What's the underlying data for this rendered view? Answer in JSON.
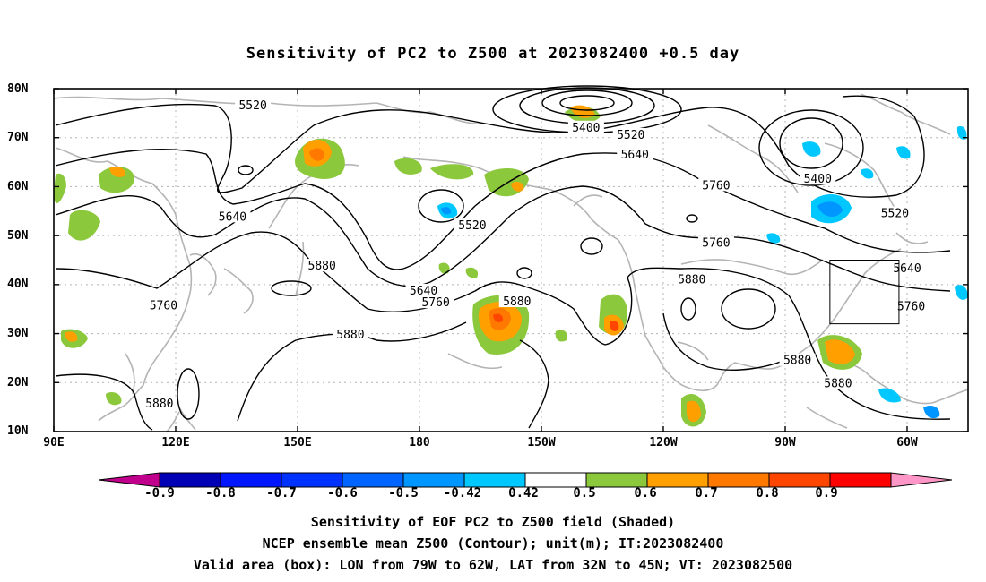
{
  "title": "Sensitivity of PC2 to Z500 at 2023082400 +0.5 day",
  "lat_ticks": [
    "80N",
    "70N",
    "60N",
    "50N",
    "40N",
    "30N",
    "20N",
    "10N"
  ],
  "lon_ticks": [
    "90E",
    "120E",
    "150E",
    "180",
    "150W",
    "120W",
    "90W",
    "60W"
  ],
  "contour_labels": [
    {
      "text": "5520",
      "lon": 139,
      "lat": 76.5
    },
    {
      "text": "5400",
      "lon": -139,
      "lat": 72.0
    },
    {
      "text": "5520",
      "lon": -128,
      "lat": 70.5
    },
    {
      "text": "5640",
      "lon": -127,
      "lat": 66.5
    },
    {
      "text": "5760",
      "lon": -107,
      "lat": 60.2
    },
    {
      "text": "5400",
      "lon": -82,
      "lat": 61.5
    },
    {
      "text": "5520",
      "lon": -63,
      "lat": 54.5
    },
    {
      "text": "5640",
      "lon": 134,
      "lat": 53.8
    },
    {
      "text": "5520",
      "lon": -167,
      "lat": 52.0
    },
    {
      "text": "5760",
      "lon": -107,
      "lat": 48.5
    },
    {
      "text": "5880",
      "lon": 156,
      "lat": 43.8
    },
    {
      "text": "5640",
      "lon": -179,
      "lat": 38.7
    },
    {
      "text": "5760",
      "lon": -176,
      "lat": 36.3
    },
    {
      "text": "5880",
      "lon": -156,
      "lat": 36.5
    },
    {
      "text": "5760",
      "lon": 117,
      "lat": 35.7
    },
    {
      "text": "5880",
      "lon": -113,
      "lat": 41.0
    },
    {
      "text": "5640",
      "lon": -60,
      "lat": 43.3
    },
    {
      "text": "5760",
      "lon": -59,
      "lat": 35.5
    },
    {
      "text": "5880",
      "lon": 163,
      "lat": 29.7
    },
    {
      "text": "5880",
      "lon": -87,
      "lat": 24.5
    },
    {
      "text": "5880",
      "lon": -77,
      "lat": 19.8
    },
    {
      "text": "5880",
      "lon": 116,
      "lat": 15.7
    }
  ],
  "valid_box": {
    "lon_west": -79,
    "lon_east": -62,
    "lat_south": 32,
    "lat_north": 45
  },
  "colorbar": {
    "labels": [
      "-0.9",
      "-0.8",
      "-0.7",
      "-0.6",
      "-0.5",
      "-0.42",
      "0.42",
      "0.5",
      "0.6",
      "0.7",
      "0.8",
      "0.9"
    ],
    "colors": [
      "#c0008c",
      "#0000b4",
      "#0016ff",
      "#0032ff",
      "#0064ff",
      "#0096ff",
      "#00c8ff",
      "#ffffff",
      "#8cc83c",
      "#ffa000",
      "#ff7800",
      "#ff4600",
      "#ff0000",
      "#ff96c8"
    ]
  },
  "captions": [
    "Sensitivity of EOF PC2 to Z500 field (Shaded)",
    "NCEP ensemble mean Z500 (Contour); unit(m); IT:2023082400",
    "Valid area (box): LON from 79W to 62W, LAT from 32N to 45N; VT: 2023082500"
  ]
}
